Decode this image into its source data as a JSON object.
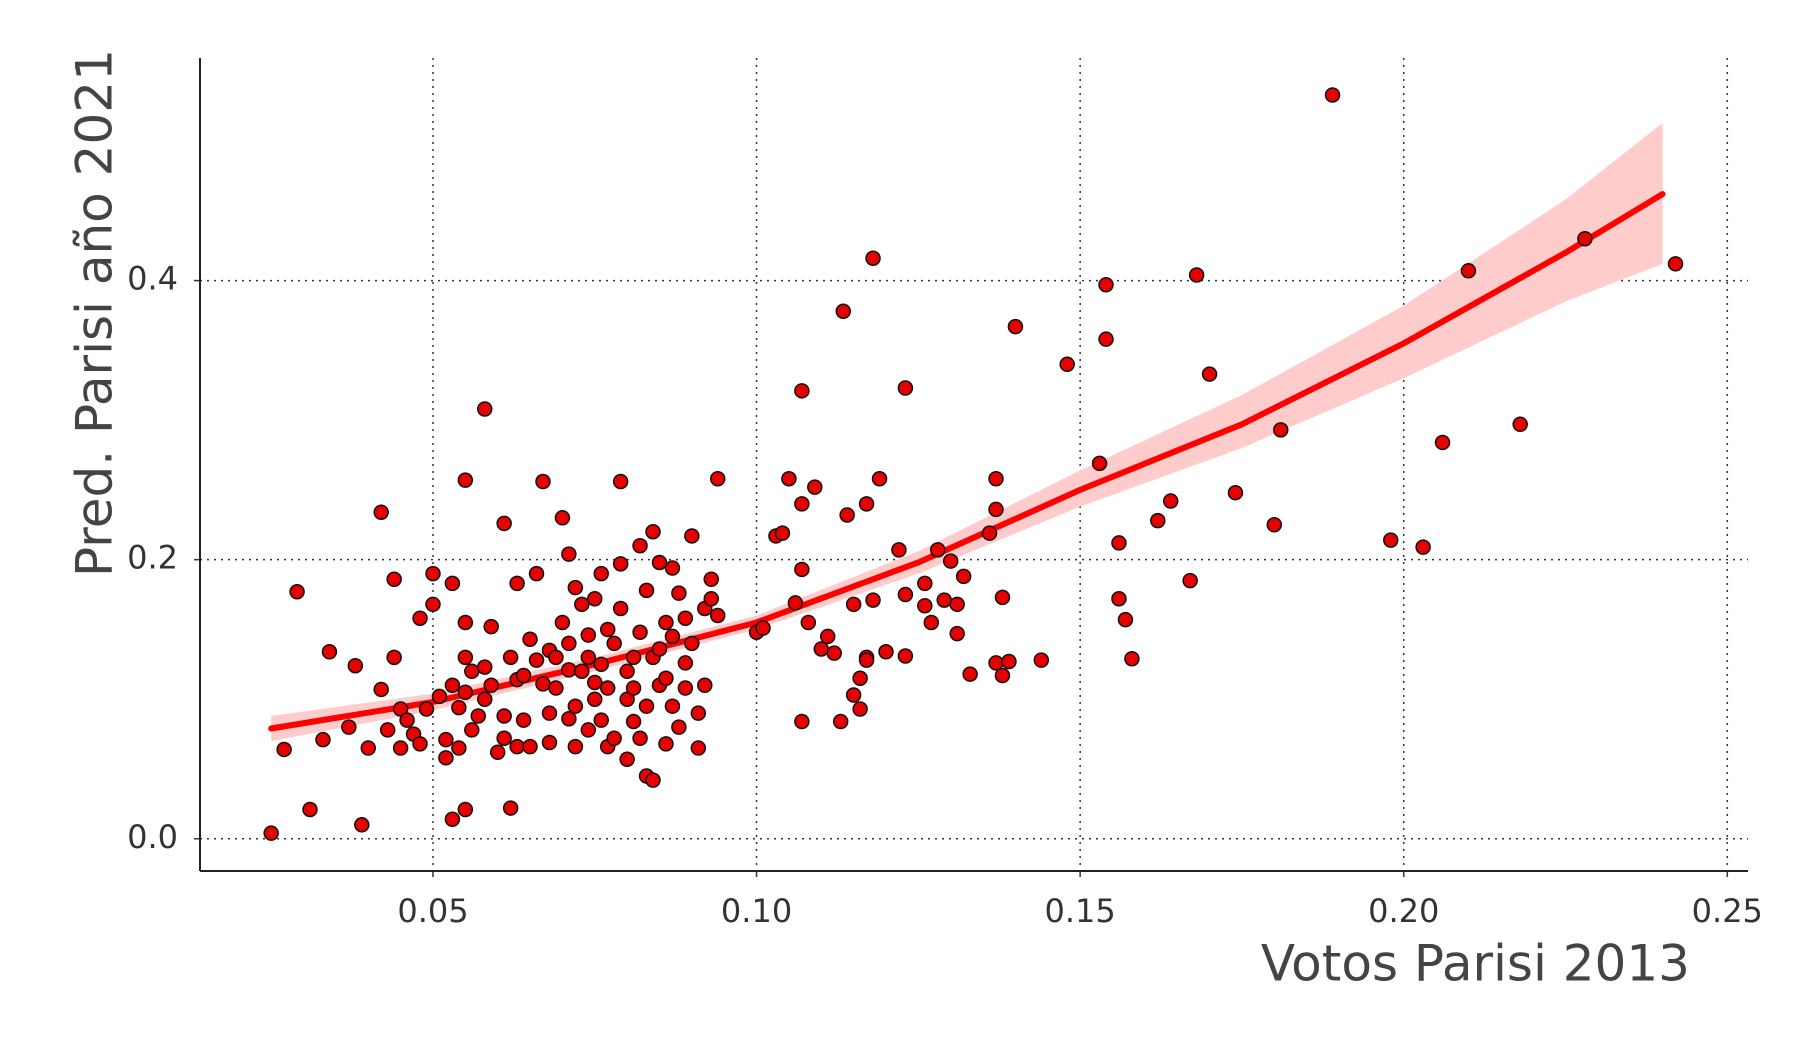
{
  "chart_data": {
    "type": "scatter",
    "x_label": "Votos Parisi 2013",
    "y_label": "Pred. Parisi año 2021",
    "xlim": [
      0.014,
      0.2532
    ],
    "ylim": [
      -0.0231,
      0.5595
    ],
    "xticks": [
      0.05,
      {
        "value": 0.1,
        "label": "0.10"
      },
      0.15,
      {
        "value": 0.2,
        "label": "0.20"
      },
      0.25
    ],
    "yticks": [
      {
        "value": 0,
        "label": "0.0"
      },
      0.2,
      0.4
    ],
    "grid": true,
    "color": "#e60000",
    "x": [
      0.025,
      0.027,
      0.029,
      0.031,
      0.033,
      0.034,
      0.037,
      0.038,
      0.039,
      0.04,
      0.042,
      0.042,
      0.043,
      0.044,
      0.044,
      0.045,
      0.045,
      0.046,
      0.047,
      0.048,
      0.048,
      0.049,
      0.05,
      0.05,
      0.051,
      0.052,
      0.052,
      0.053,
      0.053,
      0.053,
      0.054,
      0.054,
      0.055,
      0.055,
      0.055,
      0.055,
      0.055,
      0.056,
      0.056,
      0.057,
      0.058,
      0.058,
      0.058,
      0.059,
      0.059,
      0.06,
      0.061,
      0.061,
      0.061,
      0.062,
      0.062,
      0.063,
      0.063,
      0.063,
      0.064,
      0.064,
      0.065,
      0.065,
      0.066,
      0.066,
      0.067,
      0.067,
      0.068,
      0.068,
      0.068,
      0.069,
      0.069,
      0.07,
      0.07,
      0.071,
      0.071,
      0.071,
      0.071,
      0.072,
      0.072,
      0.072,
      0.073,
      0.073,
      0.074,
      0.074,
      0.074,
      0.075,
      0.075,
      0.075,
      0.076,
      0.076,
      0.076,
      0.077,
      0.077,
      0.077,
      0.078,
      0.078,
      0.079,
      0.079,
      0.079,
      0.08,
      0.08,
      0.08,
      0.081,
      0.081,
      0.081,
      0.082,
      0.082,
      0.082,
      0.083,
      0.083,
      0.083,
      0.084,
      0.084,
      0.084,
      0.085,
      0.085,
      0.085,
      0.086,
      0.086,
      0.086,
      0.087,
      0.087,
      0.087,
      0.088,
      0.088,
      0.089,
      0.089,
      0.089,
      0.09,
      0.09,
      0.091,
      0.091,
      0.092,
      0.092,
      0.093,
      0.093,
      0.094,
      0.094,
      0.1,
      0.101,
      0.103,
      0.104,
      0.105,
      0.106,
      0.107,
      0.107,
      0.107,
      0.107,
      0.108,
      0.109,
      0.11,
      0.111,
      0.112,
      0.113,
      0.1134,
      0.114,
      0.115,
      0.115,
      0.116,
      0.116,
      0.117,
      0.117,
      0.118,
      0.117,
      0.118,
      0.119,
      0.12,
      0.122,
      0.123,
      0.123,
      0.123,
      0.126,
      0.126,
      0.127,
      0.128,
      0.129,
      0.13,
      0.131,
      0.131,
      0.132,
      0.133,
      0.136,
      0.137,
      0.137,
      0.137,
      0.139,
      0.138,
      0.138,
      0.14,
      0.144,
      0.148,
      0.153,
      0.154,
      0.154,
      0.156,
      0.156,
      0.157,
      0.158,
      0.162,
      0.164,
      0.167,
      0.168,
      0.17,
      0.174,
      0.18,
      0.181,
      0.189,
      0.198,
      0.203,
      0.206,
      0.21,
      0.218,
      0.228,
      0.242
    ],
    "values": [
      0.004,
      0.064,
      0.177,
      0.021,
      0.071,
      0.134,
      0.08,
      0.124,
      0.01,
      0.065,
      0.107,
      0.234,
      0.078,
      0.13,
      0.186,
      0.093,
      0.065,
      0.085,
      0.075,
      0.068,
      0.158,
      0.093,
      0.19,
      0.168,
      0.102,
      0.058,
      0.071,
      0.014,
      0.11,
      0.183,
      0.094,
      0.065,
      0.021,
      0.13,
      0.105,
      0.155,
      0.257,
      0.078,
      0.12,
      0.088,
      0.308,
      0.1,
      0.123,
      0.11,
      0.152,
      0.062,
      0.088,
      0.072,
      0.226,
      0.13,
      0.022,
      0.114,
      0.183,
      0.066,
      0.085,
      0.117,
      0.143,
      0.066,
      0.19,
      0.128,
      0.111,
      0.256,
      0.069,
      0.135,
      0.09,
      0.108,
      0.13,
      0.23,
      0.155,
      0.086,
      0.121,
      0.204,
      0.14,
      0.095,
      0.066,
      0.18,
      0.12,
      0.168,
      0.078,
      0.146,
      0.13,
      0.1,
      0.112,
      0.172,
      0.085,
      0.19,
      0.125,
      0.066,
      0.15,
      0.108,
      0.072,
      0.14,
      0.165,
      0.197,
      0.256,
      0.1,
      0.12,
      0.057,
      0.084,
      0.13,
      0.108,
      0.148,
      0.21,
      0.072,
      0.178,
      0.095,
      0.045,
      0.22,
      0.042,
      0.13,
      0.198,
      0.11,
      0.136,
      0.155,
      0.068,
      0.115,
      0.145,
      0.194,
      0.095,
      0.08,
      0.176,
      0.126,
      0.108,
      0.158,
      0.217,
      0.14,
      0.09,
      0.065,
      0.165,
      0.11,
      0.172,
      0.186,
      0.258,
      0.16,
      0.148,
      0.151,
      0.217,
      0.219,
      0.258,
      0.169,
      0.24,
      0.321,
      0.193,
      0.084,
      0.155,
      0.252,
      0.136,
      0.145,
      0.133,
      0.084,
      0.378,
      0.232,
      0.168,
      0.103,
      0.115,
      0.093,
      0.24,
      0.13,
      0.416,
      0.128,
      0.171,
      0.258,
      0.134,
      0.207,
      0.175,
      0.131,
      0.323,
      0.183,
      0.167,
      0.155,
      0.207,
      0.171,
      0.199,
      0.168,
      0.147,
      0.188,
      0.118,
      0.219,
      0.236,
      0.258,
      0.126,
      0.127,
      0.117,
      0.173,
      0.367,
      0.128,
      0.34,
      0.269,
      0.397,
      0.358,
      0.212,
      0.172,
      0.157,
      0.129,
      0.228,
      0.242,
      0.185,
      0.404,
      0.333,
      0.248,
      0.225,
      0.293,
      0.533,
      0.214,
      0.209,
      0.284,
      0.407,
      0.297,
      0.43,
      0.412
    ],
    "fit": {
      "color": "#ff0000",
      "band_color": "#ffcccc",
      "x": [
        0.025,
        0.05,
        0.075,
        0.1,
        0.125,
        0.15,
        0.175,
        0.2,
        0.225,
        0.24
      ],
      "values": [
        0.079,
        0.098,
        0.125,
        0.155,
        0.198,
        0.25,
        0.297,
        0.355,
        0.42,
        0.462
      ],
      "lower": [
        0.07,
        0.092,
        0.12,
        0.15,
        0.19,
        0.238,
        0.28,
        0.33,
        0.385,
        0.412
      ],
      "upper": [
        0.088,
        0.104,
        0.13,
        0.16,
        0.206,
        0.264,
        0.318,
        0.382,
        0.458,
        0.513
      ]
    }
  }
}
